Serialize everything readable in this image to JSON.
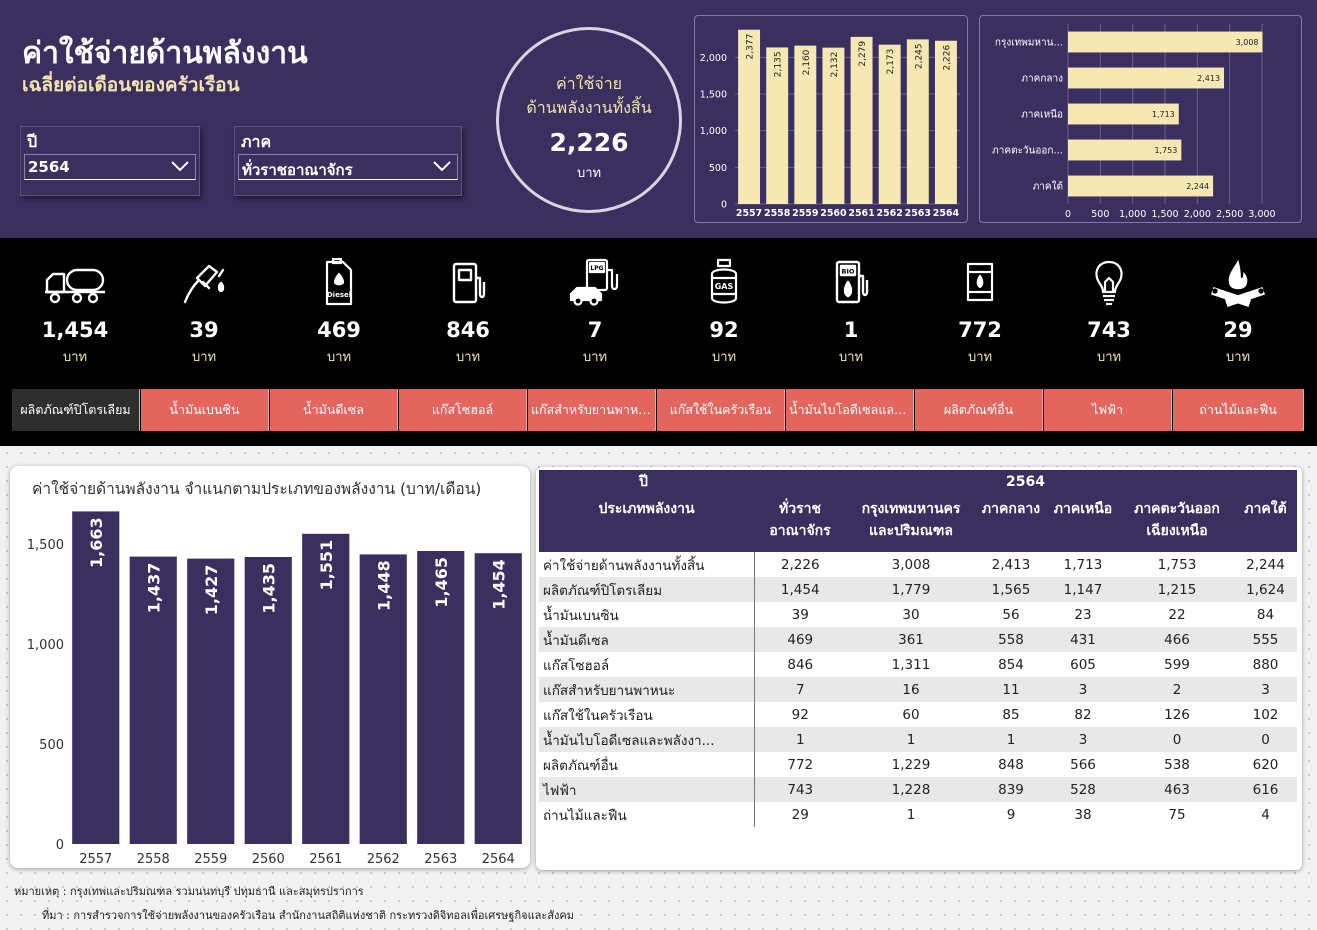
{
  "header": {
    "title": "ค่าใช้จ่ายด้านพลังงาน",
    "subtitle": "เฉลี่ยต่อเดือนของครัวเรือน"
  },
  "filters": {
    "year_label": "ปี",
    "year_value": "2564",
    "region_label": "ภาค",
    "region_value": "ทั่วราชอาณาจักร"
  },
  "kpi": {
    "line1": "ค่าใช้จ่าย",
    "line2": "ด้านพลังงานทั้งสิ้น",
    "value": "2,226",
    "unit": "บาท"
  },
  "colors": {
    "header_bg": "#3a2f5e",
    "accent_cream": "#f5e8b2",
    "bar_purple": "#3a2f5e",
    "tab_red": "#e4655e",
    "tab_active": "#2e2e2e"
  },
  "energy_items": [
    {
      "icon": "fuel-truck-icon",
      "value": "1,454",
      "unit": "บาท",
      "tab": "ผลิตภัณฑ์ปิโตรเลียม"
    },
    {
      "icon": "fuel-nozzle-icon",
      "value": "39",
      "unit": "บาท",
      "tab": "น้ำมันเบนซิน"
    },
    {
      "icon": "diesel-can-icon",
      "value": "469",
      "unit": "บาท",
      "tab": "น้ำมันดีเซล"
    },
    {
      "icon": "gas-pump-icon",
      "value": "846",
      "unit": "บาท",
      "tab": "แก๊สโซฮอล์"
    },
    {
      "icon": "lpg-car-icon",
      "value": "7",
      "unit": "บาท",
      "tab": "แก๊สสำหรับยานพาหนะ"
    },
    {
      "icon": "gas-cylinder-icon",
      "value": "92",
      "unit": "บาท",
      "tab": "แก๊สใช้ในครัวเรือน"
    },
    {
      "icon": "bio-pump-icon",
      "value": "1",
      "unit": "บาท",
      "tab": "น้ำมันไบโอดีเซลและพลังงานทดแทน"
    },
    {
      "icon": "oil-barrel-icon",
      "value": "772",
      "unit": "บาท",
      "tab": "ผลิตภัณฑ์อื่น"
    },
    {
      "icon": "light-bulb-icon",
      "value": "743",
      "unit": "บาท",
      "tab": "ไฟฟ้า"
    },
    {
      "icon": "firewood-icon",
      "value": "29",
      "unit": "บาท",
      "tab": "ถ่านไม้และฟืน"
    }
  ],
  "chart_data": [
    {
      "type": "bar",
      "title": "",
      "categories": [
        "2557",
        "2558",
        "2559",
        "2560",
        "2561",
        "2562",
        "2563",
        "2564"
      ],
      "values": [
        2377,
        2135,
        2160,
        2132,
        2279,
        2173,
        2245,
        2226
      ],
      "labels": [
        "2,377",
        "2,135",
        "2,160",
        "2,132",
        "2,279",
        "2,173",
        "2,245",
        "2,226"
      ],
      "yticks": [
        "0",
        "500",
        "1,000",
        "1,500",
        "2,000"
      ],
      "ylim": [
        0,
        2400
      ],
      "color": "#f5e8b2",
      "grid": true
    },
    {
      "type": "bar",
      "orientation": "horizontal",
      "title": "",
      "categories": [
        "กรุงเทพมหาน...",
        "ภาคกลาง",
        "ภาคเหนือ",
        "ภาคตะวันออก...",
        "ภาคใต้"
      ],
      "values": [
        3008,
        2413,
        1713,
        1753,
        2244
      ],
      "labels": [
        "3,008",
        "2,413",
        "1,713",
        "1,753",
        "2,244"
      ],
      "xticks": [
        "0",
        "500",
        "1,000",
        "1,500",
        "2,000",
        "2,500",
        "3,000"
      ],
      "xlim": [
        0,
        3000
      ],
      "color": "#f5e8b2",
      "grid": true
    },
    {
      "type": "bar",
      "title": "ค่าใช้จ่ายด้านพลังงาน จำแนกตามประเภทของพลังงาน (บาท/เดือน)",
      "categories": [
        "2557",
        "2558",
        "2559",
        "2560",
        "2561",
        "2562",
        "2563",
        "2564"
      ],
      "values": [
        1663,
        1437,
        1427,
        1435,
        1551,
        1448,
        1465,
        1454
      ],
      "labels": [
        "1,663",
        "1,437",
        "1,427",
        "1,435",
        "1,551",
        "1,448",
        "1,465",
        "1,454"
      ],
      "yticks": [
        "0",
        "500",
        "1,000",
        "1,500"
      ],
      "ylim": [
        0,
        1700
      ],
      "color": "#3a2f5e",
      "grid": false
    },
    {
      "type": "table",
      "year_header": "ปี",
      "year_value": "2564",
      "columns": [
        {
          "l1": "ประเภทพลังงาน",
          "l2": ""
        },
        {
          "l1": "ทั่วราช",
          "l2": "อาณาจักร"
        },
        {
          "l1": "กรุงเทพมหานคร",
          "l2": "และปริมณฑล"
        },
        {
          "l1": "ภาคกลาง",
          "l2": ""
        },
        {
          "l1": "ภาคเหนือ",
          "l2": ""
        },
        {
          "l1": "ภาคตะวันออก",
          "l2": "เฉียงเหนือ"
        },
        {
          "l1": "ภาคใต้",
          "l2": ""
        }
      ],
      "rows": [
        [
          "ค่าใช้จ่ายด้านพลังงานทั้งสิ้น",
          "2,226",
          "3,008",
          "2,413",
          "1,713",
          "1,753",
          "2,244"
        ],
        [
          "ผลิตภัณฑ์ปิโตรเลียม",
          "1,454",
          "1,779",
          "1,565",
          "1,147",
          "1,215",
          "1,624"
        ],
        [
          "น้ำมันเบนซิน",
          "39",
          "30",
          "56",
          "23",
          "22",
          "84"
        ],
        [
          "น้ำมันดีเซล",
          "469",
          "361",
          "558",
          "431",
          "466",
          "555"
        ],
        [
          "แก๊สโซฮอล์",
          "846",
          "1,311",
          "854",
          "605",
          "599",
          "880"
        ],
        [
          "แก๊สสำหรับยานพาหนะ",
          "7",
          "16",
          "11",
          "3",
          "2",
          "3"
        ],
        [
          "แก๊สใช้ในครัวเรือน",
          "92",
          "60",
          "85",
          "82",
          "126",
          "102"
        ],
        [
          "น้ำมันไบโอดีเซลและพลังงา...",
          "1",
          "1",
          "1",
          "3",
          "0",
          "0"
        ],
        [
          "ผลิตภัณฑ์อื่น",
          "772",
          "1,229",
          "848",
          "566",
          "538",
          "620"
        ],
        [
          "ไฟฟ้า",
          "743",
          "1,228",
          "839",
          "528",
          "463",
          "616"
        ],
        [
          "ถ่านไม้และฟืน",
          "29",
          "1",
          "9",
          "38",
          "75",
          "4"
        ]
      ]
    }
  ],
  "footer": {
    "note": "หมายเหตุ : กรุงเทพและปริมณฑล รวมนนทบุรี ปทุมธานี และสมุทรปราการ",
    "source": "ที่มา : การสำรวจการใช้จ่ายพลังงานของครัวเรือน สำนักงานสถิติแห่งชาติ กระทรวงดิจิทอลเพื่อเศรษฐกิจและสังคม"
  }
}
